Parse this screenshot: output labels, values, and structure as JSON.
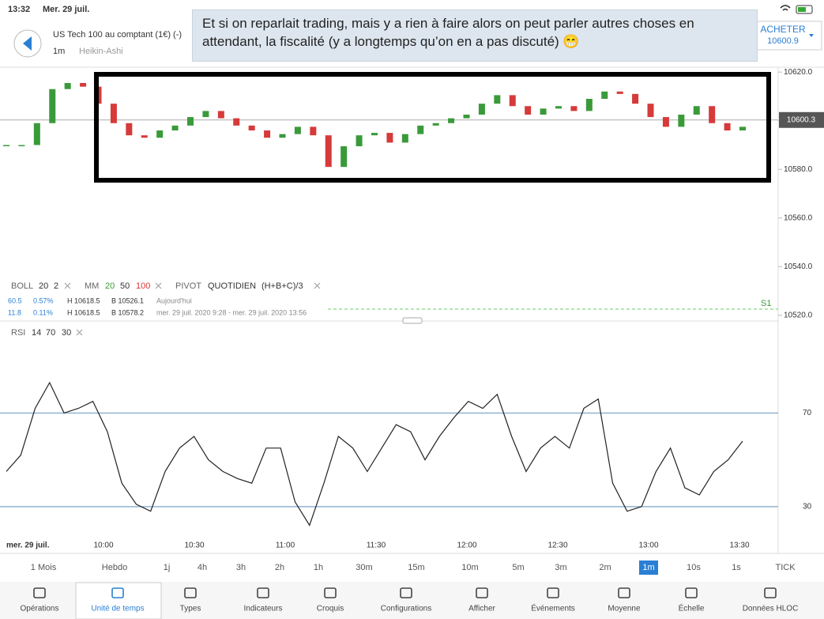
{
  "status": {
    "time": "13:32",
    "date": "Mer. 29 juil."
  },
  "header": {
    "instrument": "US Tech 100 au comptant (1€) (-)",
    "timeframe": "1m",
    "style": "Heikin-Ashi",
    "buy_label": "ACHETER",
    "buy_price": "10600.9"
  },
  "comment": "Et si on reparlait trading, mais y a rien à faire alors on peut parler autres choses en attendant, la fiscalité (y a longtemps qu’on en a pas discuté) 😁",
  "price_chart": {
    "ylim": [
      10518,
      10622
    ],
    "yticks": [
      {
        "value": 10620,
        "label": "10620.0"
      },
      {
        "value": 10600,
        "label": "10600.0"
      },
      {
        "value": 10580,
        "label": "10580.0"
      },
      {
        "value": 10560,
        "label": "10560.0"
      },
      {
        "value": 10540,
        "label": "10540.0"
      },
      {
        "value": 10520,
        "label": "10520.0"
      }
    ],
    "current_price": 10600.3,
    "values": [
      10590,
      10590,
      10599,
      10613,
      10615.5,
      10614,
      10607,
      10599,
      10594,
      10593,
      10596,
      10598,
      10601.5,
      10604,
      10601,
      10598,
      10596,
      10593,
      10594.5,
      10597.5,
      10594,
      10581,
      10589.5,
      10594,
      10595,
      10591,
      10594.5,
      10598,
      10599,
      10601,
      10602.5,
      10607,
      10610.5,
      10606,
      10602.5,
      10605,
      10606,
      10604,
      10609,
      10612,
      10611,
      10607,
      10601.5,
      10597.5,
      10602.5,
      10606,
      10599,
      10596,
      10597.5
    ]
  },
  "indicators": {
    "boll": [
      "BOLL",
      "20",
      "2"
    ],
    "mm": [
      "MM",
      "20",
      "50",
      "100"
    ],
    "pivot": [
      "PIVOT",
      "QUOTIDIEN",
      "(H+B+C)/3"
    ],
    "rows": [
      [
        "60.5",
        "0.57%",
        "H 10618.5",
        "B 10526.1",
        "Aujourd'hui"
      ],
      [
        "11.8",
        "0.11%",
        "H 10618.5",
        "B 10578.2",
        "mer. 29 juil. 2020 9:28 - mer. 29 juil. 2020 13:56"
      ]
    ],
    "s1": "S1"
  },
  "rsi": {
    "label": "RSI",
    "params": [
      "14",
      "70",
      "30"
    ],
    "ylim": [
      10,
      108
    ],
    "yticks": [
      70,
      30
    ],
    "values": [
      45,
      52,
      72,
      83,
      70,
      72,
      75,
      62,
      40,
      31,
      28,
      45,
      55,
      60,
      50,
      45,
      42,
      40,
      55,
      55,
      32,
      22,
      40,
      60,
      55,
      45,
      55,
      65,
      62,
      50,
      60,
      68,
      75,
      72,
      78,
      60,
      45,
      55,
      60,
      55,
      72,
      76,
      40,
      28,
      30,
      45,
      55,
      38,
      35,
      45,
      50,
      58
    ]
  },
  "time_axis": {
    "date": "mer. 29 juil.",
    "labels": [
      "10:00",
      "10:30",
      "11:00",
      "11:30",
      "12:00",
      "12:30",
      "13:00",
      "13:30"
    ]
  },
  "timeframes": {
    "items": [
      "1 Mois",
      "Hebdo",
      "1j",
      "4h",
      "3h",
      "2h",
      "1h",
      "30m",
      "15m",
      "10m",
      "5m",
      "3m",
      "2m",
      "1m",
      "10s",
      "1s",
      "TICK"
    ],
    "selected": 13
  },
  "tabs": {
    "items": [
      "Opérations",
      "Unité de temps",
      "Types",
      "Indicateurs",
      "Croquis",
      "Configurations",
      "Afficher",
      "Événements",
      "Moyenne",
      "Échelle",
      "Données HLOC"
    ],
    "selected": 1
  }
}
